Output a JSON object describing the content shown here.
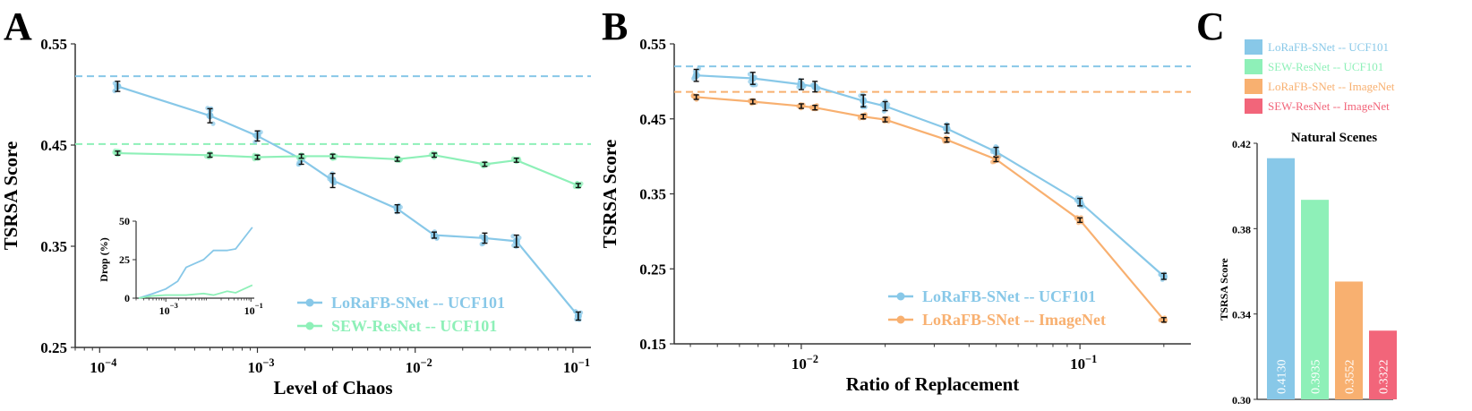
{
  "colors": {
    "blue": "#88c8e8",
    "blue_dark": "#6bb3da",
    "green": "#8ef0b8",
    "orange": "#f8b070",
    "red": "#f2657a",
    "axis": "#333333"
  },
  "panel_labels": {
    "a": "A",
    "b": "B",
    "c": "C"
  },
  "chart_data": [
    {
      "id": "A",
      "type": "line",
      "xscale": "log",
      "xlabel": "Level of Chaos",
      "ylabel": "TSRSA Score",
      "xlim": [
        7e-05,
        0.13
      ],
      "ylim": [
        0.25,
        0.55
      ],
      "yticks": [
        "0.25",
        "0.35",
        "0.45",
        "0.55"
      ],
      "xticks": [
        {
          "base": "10",
          "exp": "−4",
          "value": 0.0001
        },
        {
          "base": "10",
          "exp": "−3",
          "value": 0.001
        },
        {
          "base": "10",
          "exp": "−2",
          "value": 0.01
        },
        {
          "base": "10",
          "exp": "−1",
          "value": 0.1
        }
      ],
      "legend_position": "bottom-right",
      "series": [
        {
          "name": "LoRaFB-SNet -- UCF101",
          "color": "blue",
          "baseline": 0.518,
          "x": [
            0.00013,
            0.0005,
            0.001,
            0.0019,
            0.003,
            0.0077,
            0.0132,
            0.0276,
            0.0438,
            0.108
          ],
          "y": [
            0.508,
            0.479,
            0.459,
            0.436,
            0.415,
            0.387,
            0.361,
            0.358,
            0.355,
            0.281
          ],
          "err": [
            0.005,
            0.007,
            0.005,
            0.005,
            0.007,
            0.004,
            0.003,
            0.005,
            0.006,
            0.004
          ]
        },
        {
          "name": "SEW-ResNet -- UCF101",
          "color": "green",
          "baseline": 0.451,
          "x": [
            0.00013,
            0.0005,
            0.001,
            0.0019,
            0.003,
            0.0077,
            0.0132,
            0.0276,
            0.0438,
            0.108
          ],
          "y": [
            0.442,
            0.44,
            0.438,
            0.439,
            0.439,
            0.436,
            0.44,
            0.431,
            0.435,
            0.41
          ],
          "err": [
            0.002,
            0.002,
            0.002,
            0.002,
            0.002,
            0.002,
            0.002,
            0.002,
            0.002,
            0.002
          ]
        }
      ],
      "inset": {
        "ylabel": "Drop (%)",
        "yticks": [
          "0",
          "25",
          "50"
        ],
        "xticks": [
          {
            "base": "10",
            "exp": "−3",
            "value": 0.001
          },
          {
            "base": "10",
            "exp": "−1",
            "value": 0.1
          }
        ],
        "xlim": [
          0.0002,
          0.12
        ],
        "ylim": [
          0,
          50
        ],
        "series": [
          {
            "name": "LoRaFB-SNet -- UCF101",
            "color": "blue",
            "x": [
              0.00023,
              0.0005,
              0.001,
              0.0019,
              0.003,
              0.0077,
              0.0132,
              0.0276,
              0.0438,
              0.108
            ],
            "y": [
              0,
              3,
              6,
              11,
              20,
              25,
              31,
              31,
              32,
              46
            ]
          },
          {
            "name": "SEW-ResNet -- UCF101",
            "color": "green",
            "x": [
              0.00023,
              0.0005,
              0.001,
              0.0019,
              0.003,
              0.0077,
              0.0132,
              0.0276,
              0.0438,
              0.108
            ],
            "y": [
              0,
              1.5,
              2,
              2,
              2,
              3,
              2,
              4.5,
              3.5,
              8.5
            ]
          }
        ]
      }
    },
    {
      "id": "B",
      "type": "line",
      "xscale": "log",
      "xlabel": "Ratio of Replacement",
      "ylabel": "TSRSA Score",
      "xlim": [
        0.0035,
        0.25
      ],
      "ylim": [
        0.15,
        0.55
      ],
      "yticks": [
        "0.15",
        "0.25",
        "0.35",
        "0.45",
        "0.55"
      ],
      "xticks": [
        {
          "base": "10",
          "exp": "−2",
          "value": 0.01
        },
        {
          "base": "10",
          "exp": "−1",
          "value": 0.1
        }
      ],
      "legend_position": "bottom-right",
      "series": [
        {
          "name": "LoRaFB-SNet -- UCF101",
          "color": "blue",
          "baseline": 0.52,
          "x": [
            0.0042,
            0.0067,
            0.01,
            0.0112,
            0.0167,
            0.02,
            0.0333,
            0.05,
            0.1,
            0.2
          ],
          "y": [
            0.508,
            0.504,
            0.496,
            0.493,
            0.474,
            0.467,
            0.437,
            0.406,
            0.339,
            0.24
          ],
          "err": [
            0.008,
            0.008,
            0.007,
            0.007,
            0.008,
            0.006,
            0.006,
            0.006,
            0.005,
            0.004
          ]
        },
        {
          "name": "LoRaFB-SNet -- ImageNet",
          "color": "orange",
          "baseline": 0.486,
          "x": [
            0.0042,
            0.0067,
            0.01,
            0.0112,
            0.0167,
            0.02,
            0.0333,
            0.05,
            0.1,
            0.2
          ],
          "y": [
            0.479,
            0.473,
            0.467,
            0.465,
            0.453,
            0.449,
            0.422,
            0.396,
            0.315,
            0.182
          ],
          "err": [
            0.003,
            0.003,
            0.003,
            0.003,
            0.003,
            0.003,
            0.003,
            0.003,
            0.003,
            0.003
          ]
        }
      ]
    },
    {
      "id": "C",
      "type": "bar",
      "title": "Natural Scenes",
      "ylabel": "TSRSA Score",
      "ylim": [
        0.3,
        0.42
      ],
      "yticks": [
        "0.30",
        "0.34",
        "0.38",
        "0.42"
      ],
      "legend_position": "top",
      "categories": [
        "LoRaFB-SNet -- UCF101",
        "SEW-ResNet -- UCF101",
        "LoRaFB-SNet -- ImageNet",
        "SEW-ResNet -- ImageNet"
      ],
      "values": [
        0.413,
        0.3935,
        0.3552,
        0.3322
      ],
      "labels": [
        "0.4130",
        "0.3935",
        "0.3552",
        "0.3322"
      ],
      "colors": [
        "blue",
        "green",
        "orange",
        "red"
      ]
    }
  ]
}
